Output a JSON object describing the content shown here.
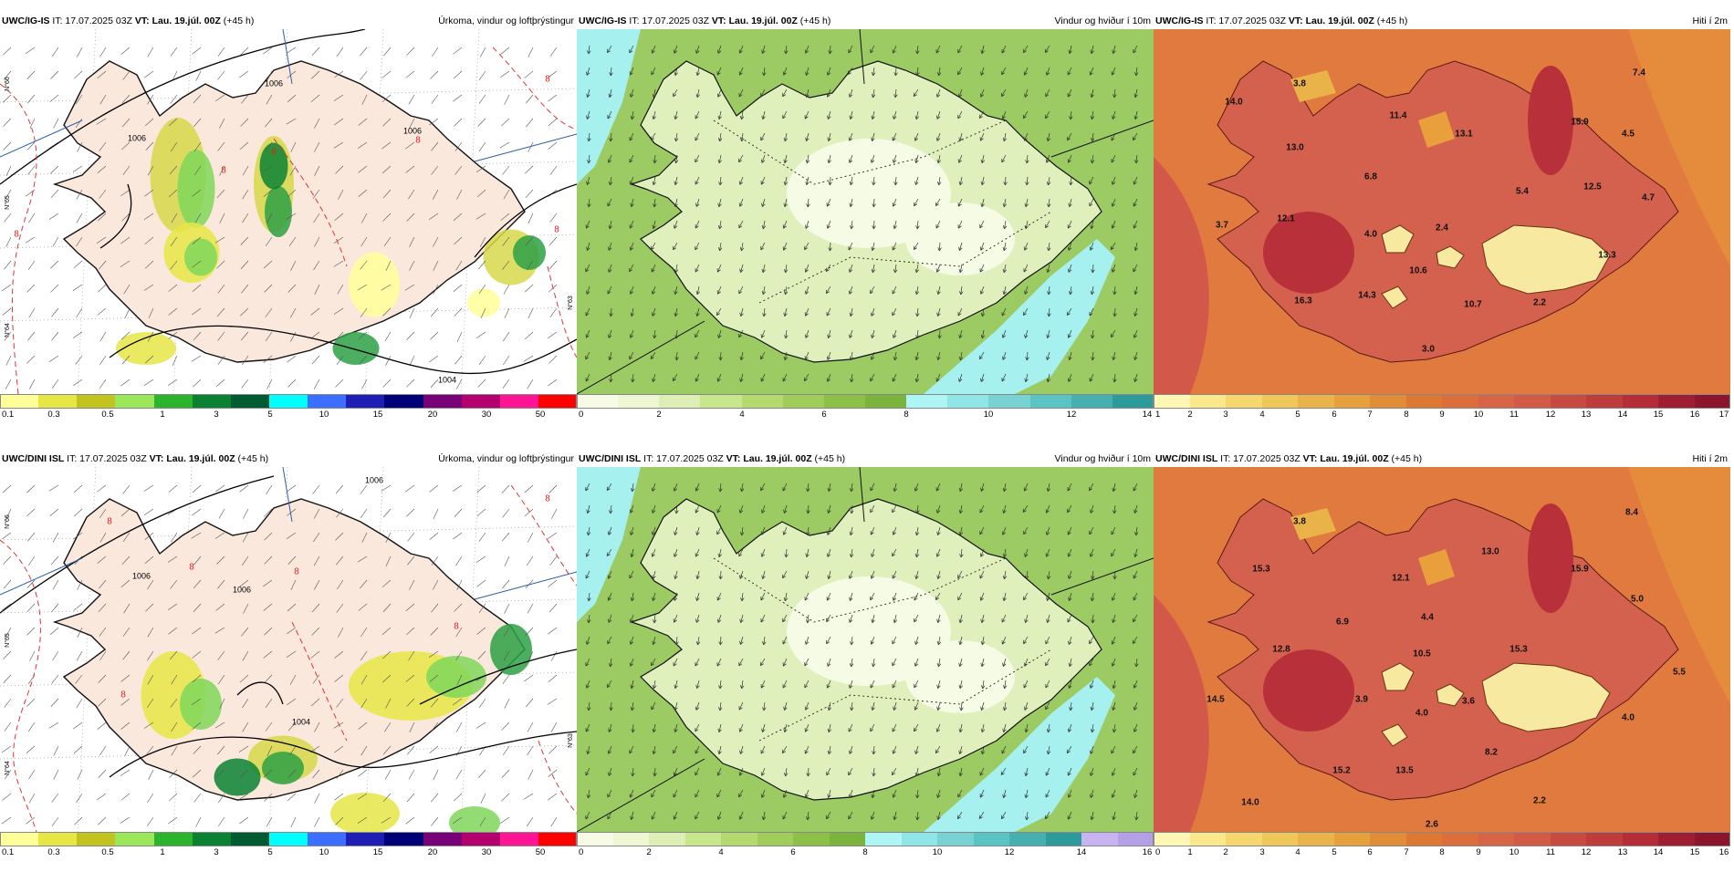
{
  "panels": [
    {
      "id": "p1",
      "model": "UWC/IG-IS",
      "it": "IT: 17.07.2025 03Z",
      "vt": "VT: Lau. 19.júl. 00Z",
      "lead": "(+45 h)",
      "title": "Úrkoma, vindur og loftþrýstingur",
      "kind": "precip",
      "colorbar_colors": [
        "#ffff99",
        "#e6e647",
        "#c3c31f",
        "#9ce65a",
        "#2db42d",
        "#0a8232",
        "#005a32",
        "#00ffff",
        "#3c6eff",
        "#1e1eb4",
        "#000078",
        "#780078",
        "#b4006e",
        "#ff1493",
        "#ff0000"
      ],
      "colorbar_ticks": [
        "0.1",
        "0.3",
        "0.5",
        "1",
        "3",
        "5",
        "10",
        "15",
        "20",
        "30",
        "50"
      ],
      "isobar_labels": [
        "1006",
        "1006",
        "1004",
        "1006"
      ],
      "contour_labels": [
        "8",
        "8",
        "8",
        "8",
        "8",
        "8"
      ]
    },
    {
      "id": "p2",
      "model": "UWC/IG-IS",
      "it": "IT: 17.07.2025 03Z",
      "vt": "VT: Lau. 19.júl. 00Z",
      "lead": "(+45 h)",
      "title": "Vindur og hviður í 10m",
      "kind": "wind",
      "colorbar_colors": [
        "#f7fbe6",
        "#eef7d2",
        "#ddefb4",
        "#c8e68c",
        "#b4d96e",
        "#a0cd5a",
        "#8cc047",
        "#7ab43c",
        "#aef5f5",
        "#90e6e6",
        "#78d2d2",
        "#5ac3c3",
        "#46afaf",
        "#2d9b9b"
      ],
      "colorbar_ticks": [
        "0",
        "2",
        "4",
        "6",
        "8",
        "10",
        "12",
        "14"
      ]
    },
    {
      "id": "p3",
      "model": "UWC/IG-IS",
      "it": "IT: 17.07.2025 03Z",
      "vt": "VT: Lau. 19.júl. 00Z",
      "lead": "(+45 h)",
      "title": "Hiti í 2m",
      "kind": "temp",
      "colorbar_colors": [
        "#fff7b4",
        "#fbe88c",
        "#f6d76e",
        "#f0c85a",
        "#ebb44b",
        "#e6a03c",
        "#e18c37",
        "#dc7832",
        "#dc6e3c",
        "#d86446",
        "#d25a46",
        "#c84b41",
        "#be3c3c",
        "#b42d37",
        "#a01e32",
        "#8c142d"
      ],
      "colorbar_ticks": [
        "1",
        "2",
        "3",
        "4",
        "5",
        "6",
        "7",
        "8",
        "9",
        "10",
        "11",
        "12",
        "13",
        "14",
        "15",
        "16",
        "17"
      ],
      "temp_labels": [
        "3.8",
        "14.0",
        "11.4",
        "13.1",
        "15.9",
        "7.4",
        "4.5",
        "13.0",
        "6.8",
        "5.4",
        "12.5",
        "4.7",
        "3.7",
        "12.1",
        "4.0",
        "2.4",
        "13.3",
        "10.6",
        "16.3",
        "14.3",
        "10.7",
        "2.2",
        "3.0"
      ]
    },
    {
      "id": "p4",
      "model": "UWC/DINI ISL",
      "it": "IT: 17.07.2025 03Z",
      "vt": "VT: Lau. 19.júl. 00Z",
      "lead": "(+45 h)",
      "title": "Úrkoma, vindur og loftþrýstingur",
      "kind": "precip",
      "colorbar_colors": [
        "#ffff99",
        "#e6e647",
        "#c3c31f",
        "#9ce65a",
        "#2db42d",
        "#0a8232",
        "#005a32",
        "#00ffff",
        "#3c6eff",
        "#1e1eb4",
        "#000078",
        "#780078",
        "#b4006e",
        "#ff1493",
        "#ff0000"
      ],
      "colorbar_ticks": [
        "0.1",
        "0.3",
        "0.5",
        "1",
        "3",
        "5",
        "10",
        "15",
        "20",
        "30",
        "50"
      ],
      "isobar_labels": [
        "1006",
        "1006",
        "1004",
        "1006"
      ],
      "contour_labels": [
        "8",
        "8",
        "8",
        "8",
        "8",
        "8"
      ]
    },
    {
      "id": "p5",
      "model": "UWC/DINI ISL",
      "it": "IT: 17.07.2025 03Z",
      "vt": "VT: Lau. 19.júl. 00Z",
      "lead": "(+45 h)",
      "title": "Vindur og hviður í 10m",
      "kind": "wind",
      "colorbar_colors": [
        "#f7fbe6",
        "#eef7d2",
        "#ddefb4",
        "#c8e68c",
        "#b4d96e",
        "#a0cd5a",
        "#8cc047",
        "#7ab43c",
        "#aef5f5",
        "#90e6e6",
        "#78d2d2",
        "#5ac3c3",
        "#46afaf",
        "#2d9b9b",
        "#c8b4f0",
        "#b4a0e6"
      ],
      "colorbar_ticks": [
        "0",
        "2",
        "4",
        "6",
        "8",
        "10",
        "12",
        "14",
        "16"
      ]
    },
    {
      "id": "p6",
      "model": "UWC/DINI ISL",
      "it": "IT: 17.07.2025 03Z",
      "vt": "VT: Lau. 19.júl. 00Z",
      "lead": "(+45 h)",
      "title": "Hiti í 2m",
      "kind": "temp",
      "colorbar_colors": [
        "#fff7b4",
        "#fbe88c",
        "#f6d76e",
        "#f0c85a",
        "#ebb44b",
        "#e6a03c",
        "#e18c37",
        "#dc7832",
        "#dc6e3c",
        "#d86446",
        "#d25a46",
        "#c84b41",
        "#be3c3c",
        "#b42d37",
        "#a01e32",
        "#8c142d"
      ],
      "colorbar_ticks": [
        "0",
        "1",
        "2",
        "3",
        "4",
        "5",
        "6",
        "7",
        "8",
        "9",
        "10",
        "11",
        "12",
        "13",
        "14",
        "15",
        "16"
      ],
      "temp_labels": [
        "3.8",
        "8.4",
        "15.3",
        "13.0",
        "15.9",
        "12.1",
        "5.0",
        "6.9",
        "4.4",
        "12.8",
        "10.5",
        "15.3",
        "5.5",
        "14.5",
        "3.9",
        "4.0",
        "3.6",
        "4.0",
        "8.2",
        "15.2",
        "13.5",
        "14.0",
        "2.2",
        "2.6"
      ]
    }
  ],
  "axis_labels": [
    "N°66",
    "N°65",
    "N°64",
    "N°63"
  ]
}
